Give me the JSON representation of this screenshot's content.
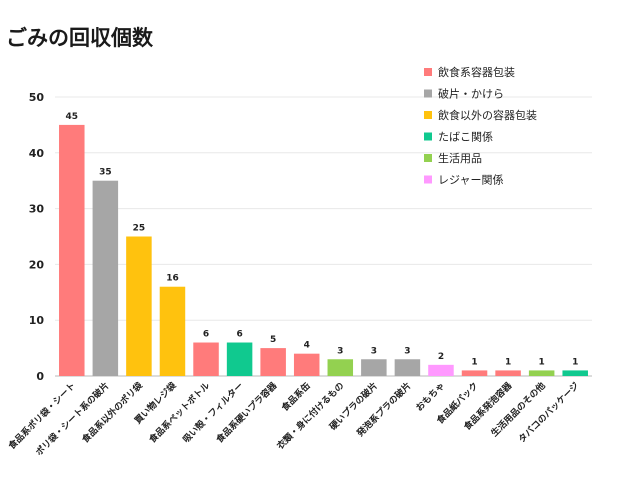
{
  "chart_data": {
    "type": "bar",
    "title": "ごみの回収個数",
    "xlabel": "",
    "ylabel": "",
    "ylim": [
      0,
      50
    ],
    "yticks": [
      0,
      10,
      20,
      30,
      40,
      50
    ],
    "grid": true,
    "legend_position": "top-right",
    "legend": [
      {
        "name": "飲食系容器包装",
        "color": "#ff7b7b"
      },
      {
        "name": "破片・かけら",
        "color": "#a6a6a6"
      },
      {
        "name": "飲食以外の容器包装",
        "color": "#ffc20e"
      },
      {
        "name": "たばこ関係",
        "color": "#10c98f"
      },
      {
        "name": "生活用品",
        "color": "#93d150"
      },
      {
        "name": "レジャー関係",
        "color": "#ff99ff"
      }
    ],
    "categories": [
      "食品系ポリ袋・シート",
      "ポリ袋・シート系の破片",
      "食品系以外のポリ袋",
      "買い物レジ袋",
      "食品系ペットボトル",
      "吸い殻・フィルター",
      "食品系硬いプラ容器",
      "食品系缶",
      "衣類・身に付けるもの",
      "硬いプラの破片",
      "発泡系プラの破片",
      "おもちゃ",
      "食品紙パック",
      "食品系発泡容器",
      "生活用品のその他",
      "タバコのパッケージ"
    ],
    "values": [
      45,
      35,
      25,
      16,
      6,
      6,
      5,
      4,
      3,
      3,
      3,
      2,
      1,
      1,
      1,
      1
    ],
    "groups": [
      "飲食系容器包装",
      "破片・かけら",
      "飲食以外の容器包装",
      "飲食以外の容器包装",
      "飲食系容器包装",
      "たばこ関係",
      "飲食系容器包装",
      "飲食系容器包装",
      "生活用品",
      "破片・かけら",
      "破片・かけら",
      "レジャー関係",
      "飲食系容器包装",
      "飲食系容器包装",
      "生活用品",
      "たばこ関係"
    ]
  }
}
